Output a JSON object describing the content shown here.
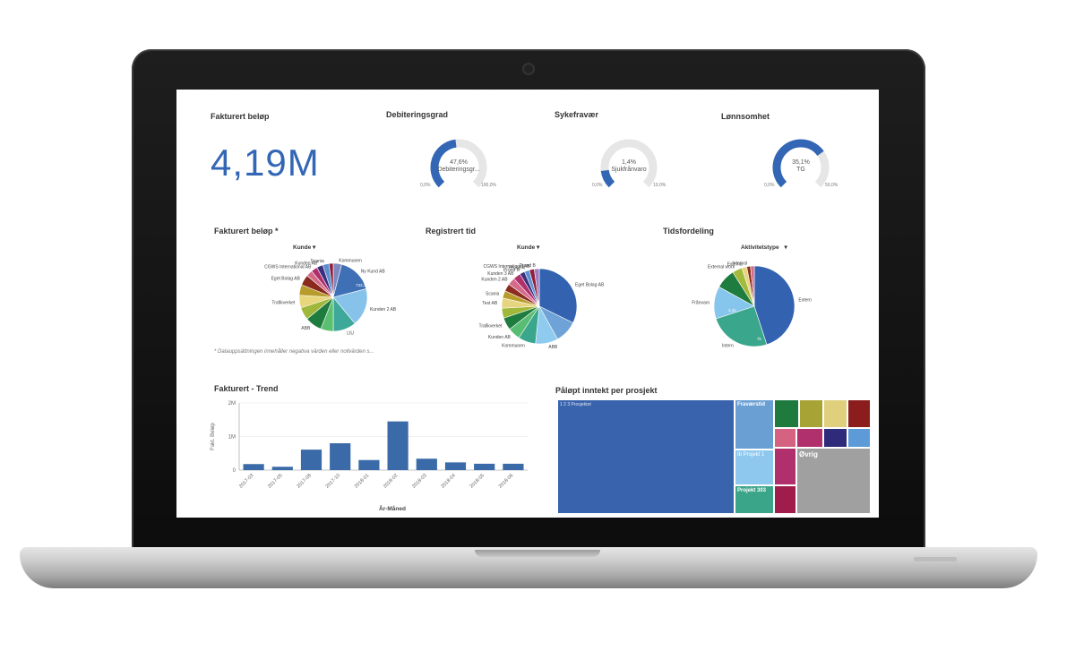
{
  "kpis": {
    "fakturert": {
      "title": "Fakturert beløp",
      "value": "4,19M"
    },
    "debitering": {
      "title": "Debiteringsgrad",
      "value": "47,6%",
      "label": "Debiteringsgr...",
      "min": "0,0%",
      "max": "100,0%",
      "fraction": 0.476,
      "color": "#3366b5"
    },
    "sykefravaer": {
      "title": "Sykefravær",
      "value": "1,4%",
      "label": "Sjukfrånvaro",
      "min": "0,0%",
      "max": "10,0%",
      "fraction": 0.14,
      "color": "#3366b5"
    },
    "lonnsomhet": {
      "title": "Lønnsomhet",
      "value": "35,1%",
      "label": "TG",
      "min": "0,0%",
      "max": "50,0%",
      "fraction": 0.702,
      "color": "#3366b5"
    }
  },
  "pie_fakturert": {
    "title": "Fakturert beløp *",
    "dimension": "Kunde",
    "note": "* Datauppsättningen innehåller negativa värden eller nollvärden s...",
    "inner_value": "733,3k"
  },
  "pie_registrert": {
    "title": "Registrert tid",
    "dimension": "Kunde"
  },
  "pie_tidsfordeling": {
    "title": "Tidsfordeling",
    "dimension": "Aktivitetstype",
    "inner_values": [
      "3,1k",
      "7k"
    ]
  },
  "trend": {
    "title": "Fakturert - Trend",
    "ylabel": "Fakt. Beløp",
    "xlabel": "År-Måned",
    "yticks": [
      "2M",
      "1M",
      "0"
    ]
  },
  "treemap": {
    "title": "Påløpt inntekt per prosjekt",
    "cells": [
      {
        "label": "1 2 3 Prosjektet",
        "color": "#3a63ad"
      },
      {
        "label": "Fraværstid",
        "color": "#6a9fd4"
      },
      {
        "label": "Ib Projekt 1",
        "color": "#8ec8ee"
      },
      {
        "label": "Projekt 303",
        "color": "#3ba58a"
      },
      {
        "label": "",
        "color": "#1f7a3e"
      },
      {
        "label": "",
        "color": "#a8a335"
      },
      {
        "label": "",
        "color": "#e0d07e"
      },
      {
        "label": "",
        "color": "#8b1d1d"
      },
      {
        "label": "",
        "color": "#d66281"
      },
      {
        "label": "",
        "color": "#b0306e"
      },
      {
        "label": "",
        "color": "#2f2a7a"
      },
      {
        "label": "",
        "color": "#5d9bd8"
      },
      {
        "label": "",
        "color": "#b0306e"
      },
      {
        "label": "",
        "color": "#a01c4a"
      },
      {
        "label": "",
        "color": "#9c7fc2"
      },
      {
        "label": "Øvrig",
        "color": "#a0a0a0"
      }
    ]
  },
  "chart_data": [
    {
      "type": "pie",
      "title": "Fakturert beløp *",
      "legend_title": "Kunde",
      "slices": [
        {
          "name": "Kommunen",
          "value": 4,
          "color": "#7d88bf"
        },
        {
          "name": "Ny Kund AB",
          "value": 17,
          "color": "#3f6fb5"
        },
        {
          "name": "Kunden 2 AB",
          "value": 18,
          "color": "#86c2ea"
        },
        {
          "name": "LIU",
          "value": 11,
          "color": "#3ea99a"
        },
        {
          "name": "",
          "value": 6,
          "color": "#5bbf71"
        },
        {
          "name": "ABB",
          "value": 8,
          "color": "#1e7c3e"
        },
        {
          "name": "",
          "value": 6,
          "color": "#9fb73a"
        },
        {
          "name": "Trafikverket",
          "value": 6,
          "color": "#e8d67d"
        },
        {
          "name": "",
          "value": 5,
          "color": "#b89b2a"
        },
        {
          "name": "Eget Bolag AB",
          "value": 5,
          "color": "#8a2a1e"
        },
        {
          "name": "",
          "value": 3,
          "color": "#d46a8a"
        },
        {
          "name": "CGWS International AB",
          "value": 3,
          "color": "#b02e6a"
        },
        {
          "name": "Kunden AB",
          "value": 3,
          "color": "#3b2f7e"
        },
        {
          "name": "Scania",
          "value": 3,
          "color": "#5b8fd0"
        },
        {
          "name": "",
          "value": 2,
          "color": "#8f1f3c"
        }
      ]
    },
    {
      "type": "pie",
      "title": "Registrert tid",
      "legend_title": "Kunde",
      "slices": [
        {
          "name": "Eget Bolag AB",
          "value": 30,
          "color": "#3363b0"
        },
        {
          "name": "",
          "value": 9,
          "color": "#6fa2d6"
        },
        {
          "name": "ABB",
          "value": 9,
          "color": "#8ecbee"
        },
        {
          "name": "Kommunen",
          "value": 7,
          "color": "#3aa68c"
        },
        {
          "name": "Kunden AB",
          "value": 5,
          "color": "#58bd73"
        },
        {
          "name": "Trafikverket",
          "value": 5,
          "color": "#1f7c3f"
        },
        {
          "name": "",
          "value": 4,
          "color": "#a1b83a"
        },
        {
          "name": "Test AB",
          "value": 4,
          "color": "#e6d57e"
        },
        {
          "name": "Scania",
          "value": 3,
          "color": "#b89c2c"
        },
        {
          "name": "",
          "value": 3,
          "color": "#8c2b20"
        },
        {
          "name": "Kunden 2 AB",
          "value": 3,
          "color": "#d56a8a"
        },
        {
          "name": "Kunden 3 AB",
          "value": 3,
          "color": "#b0306c"
        },
        {
          "name": "Prund B",
          "value": 2,
          "color": "#3c317f"
        },
        {
          "name": "Prund A",
          "value": 2,
          "color": "#5d91d2"
        },
        {
          "name": "CGWS International AB",
          "value": 2,
          "color": "#921f40"
        },
        {
          "name": "Prund B",
          "value": 2,
          "color": "#9b7fc0"
        }
      ]
    },
    {
      "type": "pie",
      "title": "Tidsfordeling",
      "legend_title": "Aktivitetstype",
      "slices": [
        {
          "name": "Extern",
          "value": 45,
          "color": "#3363b0"
        },
        {
          "name": "Intern",
          "value": 25,
          "color": "#3aa68c"
        },
        {
          "name": "Frånvaro",
          "value": 13,
          "color": "#86c6ec"
        },
        {
          "name": "",
          "value": 8,
          "color": "#1f7c3f"
        },
        {
          "name": "External work",
          "value": 4,
          "color": "#a4ba3c"
        },
        {
          "name": "Externa",
          "value": 2,
          "color": "#e6d57e"
        },
        {
          "name": "Internal",
          "value": 1.5,
          "color": "#8c2b20"
        },
        {
          "name": "",
          "value": 1.5,
          "color": "#d56a8a"
        }
      ]
    },
    {
      "type": "bar",
      "title": "Fakturert - Trend",
      "xlabel": "År-Måned",
      "ylabel": "Fakt. Beløp",
      "ylim": [
        0,
        2000000
      ],
      "categories": [
        "2017-03",
        "2017-05",
        "2017-08",
        "2017-10",
        "2018-01",
        "2018-02",
        "2018-03",
        "2018-04",
        "2018-05",
        "2018-06"
      ],
      "x_tick_labels": [
        "2017-03",
        "2017-05",
        "2017-08",
        "2017-10",
        "2018-01",
        "2018-02",
        "2018-03",
        "2018-04",
        "2018-05",
        "2018-06"
      ],
      "values": [
        180000,
        100000,
        610000,
        800000,
        300000,
        1450000,
        340000,
        230000,
        190000,
        190000
      ],
      "color": "#3a6aa8"
    }
  ]
}
